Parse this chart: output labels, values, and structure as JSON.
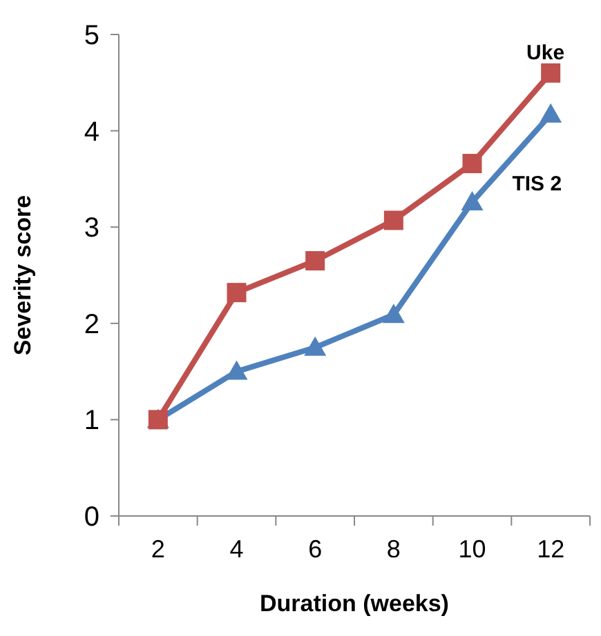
{
  "chart_data": {
    "type": "line",
    "xlabel": "Duration (weeks)",
    "ylabel": "Severity score",
    "categories": [
      "2",
      "4",
      "6",
      "8",
      "10",
      "12"
    ],
    "ylim": [
      0,
      5
    ],
    "yticks": [
      0,
      1,
      2,
      3,
      4,
      5
    ],
    "grid": false,
    "series": [
      {
        "name": "Uke",
        "color": "#c0504d",
        "marker": "square",
        "values": [
          1,
          2.32,
          2.65,
          3.07,
          3.66,
          4.6
        ]
      },
      {
        "name": "TIS 2",
        "color": "#4f81bd",
        "marker": "triangle",
        "values": [
          1,
          1.5,
          1.75,
          2.09,
          3.26,
          4.17
        ]
      }
    ]
  }
}
